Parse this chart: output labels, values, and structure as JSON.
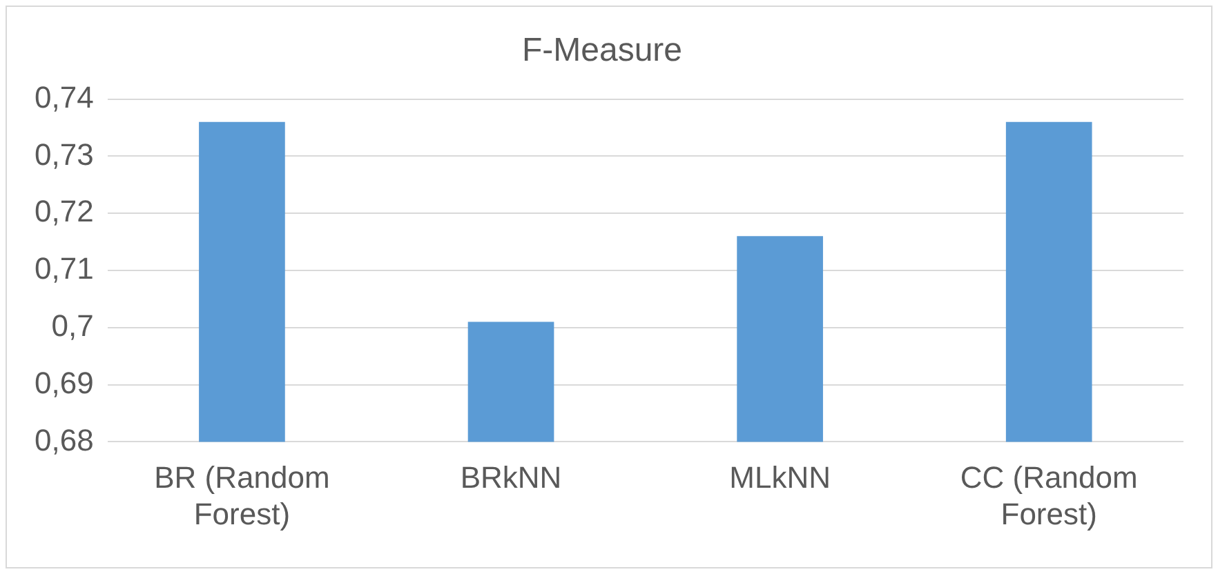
{
  "chart_data": {
    "type": "bar",
    "title": "F-Measure",
    "categories": [
      "BR (Random Forest)",
      "BRkNN",
      "MLkNN",
      "CC (Random Forest)"
    ],
    "values": [
      0.736,
      0.701,
      0.716,
      0.736
    ],
    "color": "#5b9bd5",
    "ylim": [
      0.68,
      0.74
    ],
    "yticks": [
      {
        "value": 0.68,
        "label": "0,68"
      },
      {
        "value": 0.69,
        "label": "0,69"
      },
      {
        "value": 0.7,
        "label": "0,7"
      },
      {
        "value": 0.71,
        "label": "0,71"
      },
      {
        "value": 0.72,
        "label": "0,72"
      },
      {
        "value": 0.73,
        "label": "0,73"
      },
      {
        "value": 0.74,
        "label": "0,74"
      }
    ],
    "grid": "y"
  }
}
